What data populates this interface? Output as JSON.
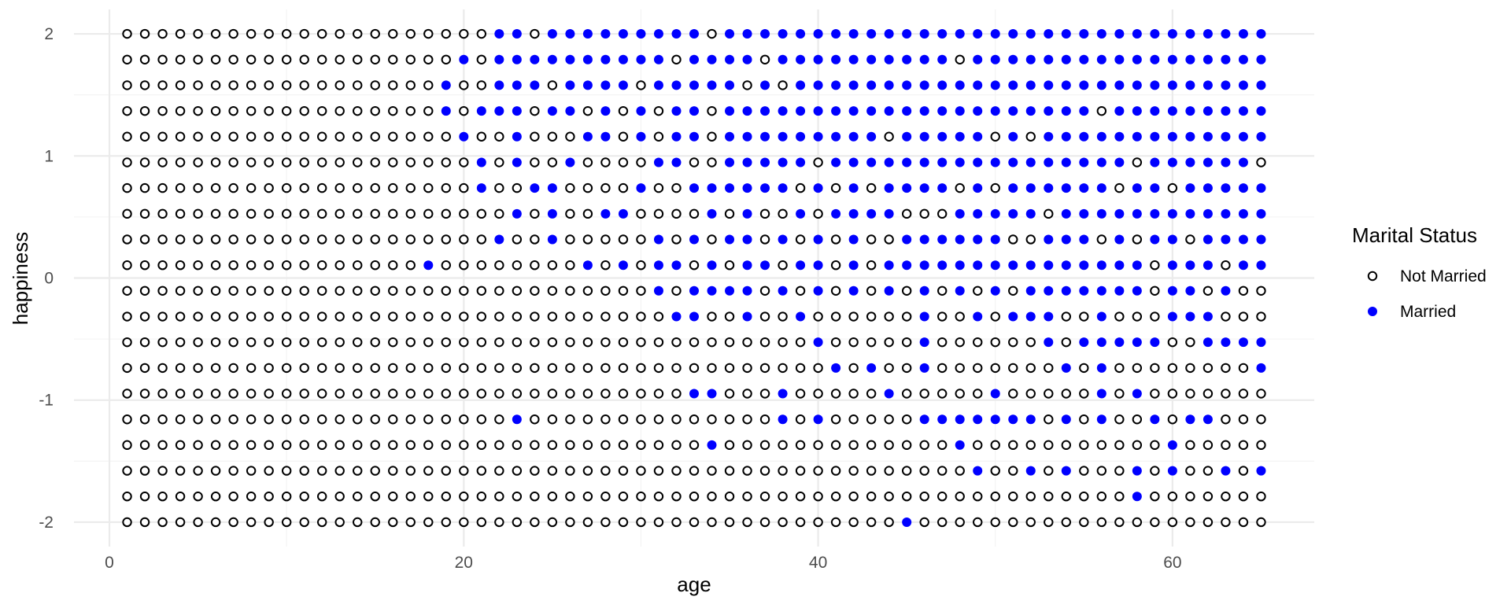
{
  "chart_data": {
    "type": "scatter",
    "title": "",
    "xlabel": "age",
    "ylabel": "happiness",
    "xlim": [
      -2,
      68
    ],
    "ylim": [
      -2.2,
      2.2
    ],
    "x_ticks": [
      0,
      20,
      40,
      60
    ],
    "x_tick_labels": [
      "0",
      "20",
      "40",
      "60"
    ],
    "y_ticks": [
      -2,
      -1,
      0,
      1,
      2
    ],
    "y_tick_labels": [
      "-2",
      "-1",
      "0",
      "1",
      "2"
    ],
    "grid": true,
    "legend": {
      "title": "Marital Status",
      "placement": "right",
      "entries": [
        {
          "label": "Not Married",
          "marker": "open-circle",
          "color": "#000000"
        },
        {
          "label": "Married",
          "marker": "filled-circle",
          "color": "#0000ff"
        }
      ]
    },
    "x_values": {
      "start": 1,
      "end": 65,
      "step": 1
    },
    "y_levels": [
      2.0,
      1.789,
      1.579,
      1.368,
      1.158,
      0.947,
      0.737,
      0.526,
      0.316,
      0.105,
      -0.105,
      -0.316,
      -0.526,
      -0.737,
      -0.947,
      -1.158,
      -1.368,
      -1.579,
      -1.789,
      -2.0
    ],
    "married_ages_by_level": [
      [
        22,
        23,
        25,
        26,
        27,
        28,
        29,
        30,
        31,
        32,
        33,
        35,
        36,
        37,
        38,
        39,
        40,
        41,
        42,
        43,
        44,
        45,
        46,
        47,
        48,
        49,
        50,
        51,
        52,
        53,
        54,
        55,
        56,
        57,
        58,
        59,
        60,
        61,
        62,
        63,
        64,
        65
      ],
      [
        20,
        22,
        23,
        24,
        25,
        26,
        27,
        28,
        29,
        30,
        31,
        33,
        34,
        35,
        36,
        38,
        39,
        40,
        41,
        42,
        43,
        44,
        45,
        46,
        47,
        49,
        50,
        51,
        52,
        53,
        54,
        55,
        56,
        57,
        58,
        59,
        60,
        61,
        62,
        63,
        64,
        65
      ],
      [
        19,
        22,
        23,
        24,
        26,
        27,
        28,
        29,
        31,
        32,
        33,
        34,
        35,
        37,
        39,
        40,
        41,
        42,
        43,
        44,
        45,
        46,
        47,
        48,
        49,
        50,
        51,
        52,
        53,
        54,
        55,
        56,
        57,
        58,
        59,
        60,
        61,
        62,
        63,
        64,
        65
      ],
      [
        19,
        21,
        22,
        23,
        25,
        26,
        28,
        30,
        32,
        33,
        35,
        36,
        37,
        38,
        39,
        40,
        41,
        42,
        43,
        44,
        45,
        46,
        47,
        48,
        49,
        50,
        51,
        52,
        53,
        54,
        55,
        57,
        58,
        59,
        60,
        61,
        62,
        63,
        64,
        65
      ],
      [
        20,
        23,
        27,
        28,
        30,
        32,
        33,
        35,
        36,
        37,
        38,
        39,
        40,
        41,
        42,
        43,
        45,
        46,
        47,
        48,
        49,
        51,
        53,
        54,
        55,
        56,
        57,
        58,
        59,
        60,
        61,
        62,
        63,
        64,
        65
      ],
      [
        21,
        23,
        26,
        31,
        32,
        35,
        36,
        37,
        38,
        39,
        41,
        42,
        43,
        44,
        45,
        46,
        47,
        48,
        49,
        50,
        51,
        52,
        53,
        54,
        55,
        56,
        57,
        59,
        60,
        61,
        62,
        63,
        64
      ],
      [
        21,
        24,
        25,
        30,
        33,
        34,
        35,
        36,
        37,
        38,
        40,
        42,
        44,
        45,
        46,
        47,
        49,
        51,
        52,
        53,
        54,
        55,
        56,
        58,
        59,
        61,
        62,
        63,
        64,
        65
      ],
      [
        23,
        25,
        28,
        29,
        34,
        36,
        39,
        41,
        42,
        43,
        44,
        48,
        49,
        50,
        51,
        52,
        54,
        55,
        56,
        57,
        58,
        59,
        60,
        61,
        62,
        63,
        64,
        65
      ],
      [
        22,
        25,
        31,
        33,
        35,
        36,
        38,
        40,
        42,
        45,
        46,
        47,
        48,
        49,
        50,
        53,
        54,
        55,
        57,
        59,
        60,
        62,
        63,
        64,
        65
      ],
      [
        18,
        27,
        29,
        31,
        32,
        34,
        36,
        37,
        39,
        40,
        42,
        44,
        45,
        46,
        47,
        48,
        49,
        50,
        51,
        52,
        53,
        54,
        55,
        56,
        57,
        58,
        60,
        61,
        62,
        64,
        65
      ],
      [
        31,
        33,
        34,
        35,
        36,
        38,
        40,
        42,
        44,
        46,
        48,
        50,
        52,
        53,
        54,
        55,
        56,
        57,
        58,
        60,
        61,
        63
      ],
      [
        32,
        33,
        36,
        39,
        46,
        49,
        51,
        52,
        53,
        56,
        60,
        61,
        62
      ],
      [
        40,
        46,
        53,
        55,
        56,
        57,
        58,
        59,
        62,
        63,
        64,
        65
      ],
      [
        41,
        43,
        46,
        54,
        56,
        65
      ],
      [
        33,
        34,
        38,
        44,
        50,
        56,
        58
      ],
      [
        23,
        38,
        40,
        46,
        47,
        48,
        49,
        50,
        51,
        52,
        54,
        56,
        59,
        61,
        62
      ],
      [
        34,
        48,
        60
      ],
      [
        49,
        52,
        54,
        58,
        60,
        63,
        65
      ],
      [
        58
      ],
      [
        45
      ]
    ]
  }
}
